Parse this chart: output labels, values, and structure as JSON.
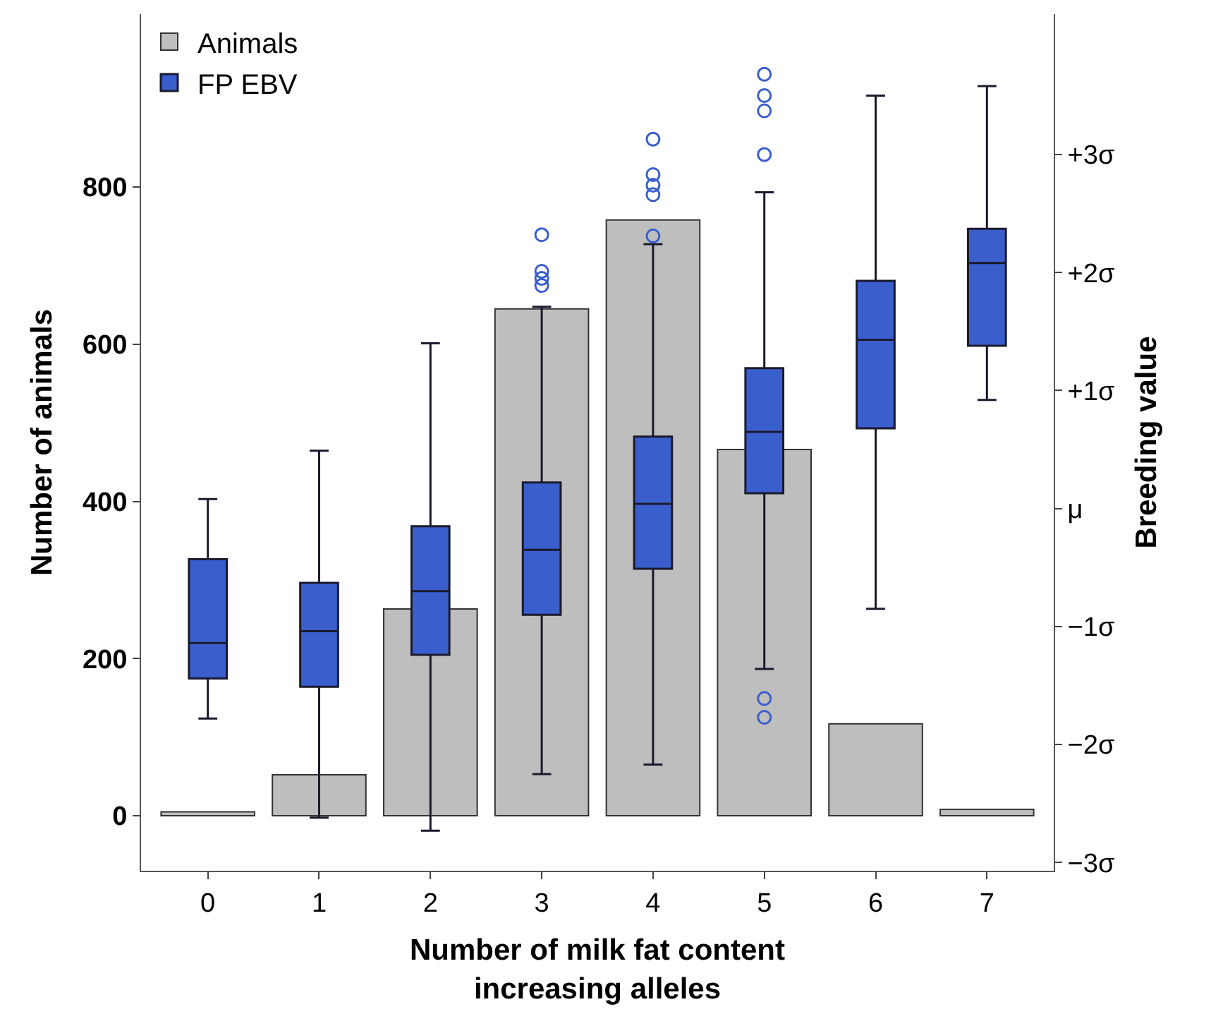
{
  "chart_data": {
    "type": "bar",
    "categories": [
      "0",
      "1",
      "2",
      "3",
      "4",
      "5",
      "6",
      "7"
    ],
    "xlabel": "Number of milk fat content\nincreasing alleles",
    "ylabel": "Number of animals",
    "y2label": "Breeding value",
    "ylim": [
      -70,
      1020
    ],
    "yticks": [
      0,
      200,
      400,
      600,
      800
    ],
    "y2lim": [
      -3.07,
      4.19
    ],
    "y2ticks": [
      {
        "value": 3,
        "label": "+3σ"
      },
      {
        "value": 2,
        "label": "+2σ"
      },
      {
        "value": 1,
        "label": "+1σ"
      },
      {
        "value": 0,
        "label": "μ"
      },
      {
        "value": -1,
        "label": "−1σ"
      },
      {
        "value": -2,
        "label": "−2σ"
      },
      {
        "value": -3,
        "label": "−3σ"
      }
    ],
    "legend": "top left",
    "series": [
      {
        "name": "Animals",
        "color": "#bebebe",
        "values": [
          5,
          52,
          263,
          645,
          758,
          466,
          117,
          8
        ]
      },
      {
        "name": "FP EBV",
        "type": "box",
        "axis": "y2",
        "color": "#3a5fcd",
        "boxes": [
          {
            "low": -1.78,
            "q1": -1.44,
            "median": -1.14,
            "q3": -0.43,
            "high": 0.08
          },
          {
            "low": -2.62,
            "q1": -1.51,
            "median": -1.04,
            "q3": -0.63,
            "high": 0.49
          },
          {
            "low": -2.73,
            "q1": -1.24,
            "median": -0.7,
            "q3": -0.15,
            "high": 1.4
          },
          {
            "low": -2.25,
            "q1": -0.9,
            "median": -0.35,
            "q3": 0.22,
            "high": 1.71,
            "outliers": [
              2.32,
              2.01,
              1.95,
              1.89
            ]
          },
          {
            "low": -2.17,
            "q1": -0.51,
            "median": 0.04,
            "q3": 0.61,
            "high": 2.24,
            "outliers": [
              3.13,
              2.83,
              2.74,
              2.66,
              2.31
            ]
          },
          {
            "low": -1.36,
            "q1": 0.13,
            "median": 0.65,
            "q3": 1.19,
            "high": 2.68,
            "outliers": [
              3.68,
              3.5,
              3.37,
              3.0,
              -1.61,
              -1.77
            ]
          },
          {
            "low": -0.85,
            "q1": 0.68,
            "median": 1.43,
            "q3": 1.93,
            "high": 3.5
          },
          {
            "low": 0.92,
            "q1": 1.38,
            "median": 2.08,
            "q3": 2.37,
            "high": 3.58
          }
        ]
      }
    ]
  }
}
